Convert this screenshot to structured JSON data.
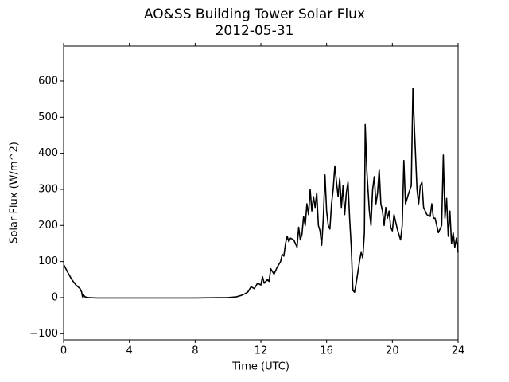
{
  "chart_data": {
    "type": "line",
    "title": "AO&SS Building Tower Solar Flux",
    "subtitle": "2012-05-31",
    "x_label": "Time (UTC)",
    "y_label": "Solar Flux (W/m^2)",
    "xlim": [
      0,
      24
    ],
    "xticks": [
      0,
      4,
      8,
      12,
      16,
      20,
      24
    ],
    "ylim": [
      -117,
      697
    ],
    "yticks": [
      {
        "value": -100,
        "label": "−100"
      },
      0,
      100,
      200,
      300,
      400,
      500,
      600
    ],
    "grid": false,
    "series": [
      {
        "name": "Solar Flux",
        "color": "#000000",
        "x": [
          0,
          0.25,
          0.5,
          0.75,
          1.0,
          1.1,
          1.15,
          1.2,
          1.3,
          1.5,
          2,
          4,
          6,
          8,
          10,
          10.5,
          10.8,
          11,
          11.2,
          11.4,
          11.6,
          11.8,
          12,
          12.1,
          12.2,
          12.4,
          12.5,
          12.6,
          12.8,
          13,
          13.2,
          13.3,
          13.4,
          13.5,
          13.6,
          13.7,
          13.8,
          14,
          14.2,
          14.3,
          14.4,
          14.5,
          14.6,
          14.7,
          14.8,
          14.9,
          15.0,
          15.1,
          15.2,
          15.3,
          15.4,
          15.5,
          15.6,
          15.7,
          15.8,
          15.9,
          16.0,
          16.1,
          16.2,
          16.3,
          16.4,
          16.5,
          16.6,
          16.7,
          16.8,
          16.9,
          17.0,
          17.1,
          17.2,
          17.3,
          17.4,
          17.5,
          17.6,
          17.7,
          17.8,
          17.9,
          18.0,
          18.1,
          18.2,
          18.3,
          18.35,
          18.45,
          18.6,
          18.7,
          18.8,
          18.9,
          19.0,
          19.1,
          19.2,
          19.3,
          19.4,
          19.5,
          19.6,
          19.7,
          19.8,
          19.9,
          20.0,
          20.1,
          20.3,
          20.5,
          20.6,
          20.7,
          20.8,
          21.0,
          21.15,
          21.25,
          21.35,
          21.5,
          21.6,
          21.7,
          21.8,
          21.9,
          22.1,
          22.3,
          22.4,
          22.5,
          22.6,
          22.8,
          23.0,
          23.1,
          23.2,
          23.3,
          23.4,
          23.5,
          23.6,
          23.7,
          23.8,
          23.9,
          24
        ],
        "values": [
          92,
          70,
          50,
          35,
          25,
          15,
          2,
          8,
          2,
          0,
          -1,
          -1,
          -1,
          -1,
          0,
          2,
          6,
          10,
          15,
          30,
          25,
          40,
          35,
          58,
          40,
          50,
          45,
          80,
          65,
          85,
          100,
          120,
          115,
          150,
          170,
          155,
          165,
          160,
          140,
          195,
          160,
          175,
          225,
          200,
          260,
          230,
          300,
          240,
          280,
          250,
          290,
          200,
          185,
          145,
          220,
          340,
          240,
          200,
          190,
          260,
          300,
          365,
          320,
          280,
          330,
          250,
          310,
          230,
          290,
          320,
          220,
          140,
          20,
          15,
          40,
          70,
          100,
          125,
          110,
          180,
          480,
          350,
          240,
          200,
          300,
          335,
          260,
          290,
          355,
          260,
          240,
          200,
          250,
          220,
          240,
          195,
          185,
          230,
          190,
          160,
          200,
          380,
          260,
          290,
          310,
          580,
          460,
          300,
          260,
          310,
          320,
          250,
          230,
          225,
          260,
          220,
          220,
          180,
          200,
          395,
          220,
          275,
          170,
          240,
          150,
          180,
          140,
          165,
          125
        ]
      }
    ]
  }
}
